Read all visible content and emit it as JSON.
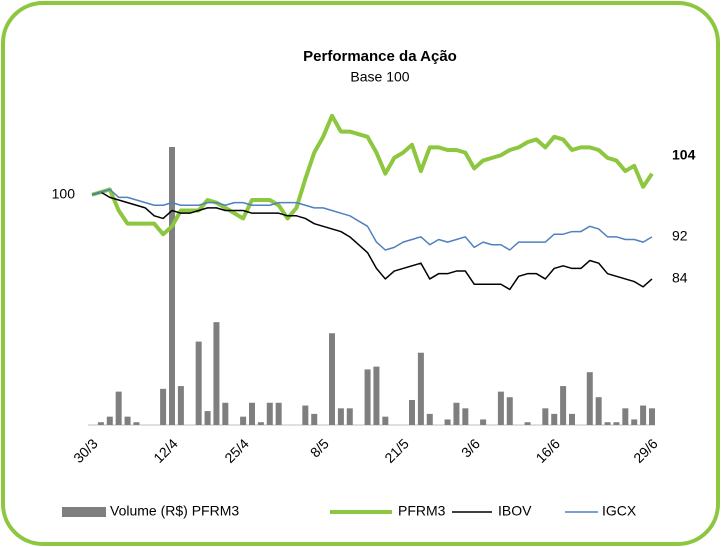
{
  "chart_data": {
    "type": "line",
    "title": "Performance da Ação",
    "subtitle": "Base 100",
    "categories": [
      "30/3",
      null,
      null,
      null,
      null,
      null,
      null,
      null,
      null,
      "12/4",
      null,
      null,
      null,
      null,
      null,
      null,
      null,
      "25/4",
      null,
      null,
      null,
      null,
      null,
      null,
      null,
      null,
      "8/5",
      null,
      null,
      null,
      null,
      null,
      null,
      null,
      null,
      "21/5",
      null,
      null,
      null,
      null,
      null,
      null,
      null,
      "3/6",
      null,
      null,
      null,
      null,
      null,
      null,
      null,
      null,
      "16/6",
      null,
      null,
      null,
      null,
      null,
      null,
      null,
      null,
      null,
      null,
      "29/6"
    ],
    "ylim": [
      80,
      118
    ],
    "yticks": [
      100
    ],
    "y2lim": [
      0,
      100
    ],
    "series": [
      {
        "name": "Volume (R$) PFRM3",
        "type": "bar",
        "axis": "y2",
        "color": "#7f7f7f",
        "values": [
          0,
          1,
          3,
          12,
          3,
          1,
          0,
          0,
          13,
          100,
          14,
          0,
          30,
          5,
          37,
          8,
          0,
          3,
          8,
          1,
          8,
          8,
          0,
          0,
          7,
          4,
          0,
          33,
          6,
          6,
          0,
          20,
          21,
          3,
          0,
          0,
          9,
          26,
          4,
          0,
          2,
          8,
          6,
          0,
          2,
          0,
          12,
          10,
          0,
          1,
          0,
          6,
          4,
          14,
          4,
          0,
          19,
          10,
          1,
          1,
          6,
          2,
          7,
          6
        ]
      },
      {
        "name": "PFRM3",
        "type": "line",
        "color": "#8dc63f",
        "values": [
          100,
          100.5,
          101,
          97,
          94.5,
          94.5,
          94.5,
          94.5,
          92.5,
          94,
          97,
          97,
          97,
          99,
          98.5,
          97.5,
          96.5,
          95.5,
          99,
          99,
          99,
          98,
          95.5,
          97.5,
          103,
          108,
          111,
          115,
          112,
          112,
          111.5,
          111,
          108,
          104,
          107,
          108,
          109.5,
          104.5,
          109,
          109,
          108.5,
          108.5,
          108,
          105,
          106.5,
          107,
          107.5,
          108.5,
          109,
          110,
          110.5,
          109,
          111,
          110.5,
          108.5,
          109,
          109,
          108.5,
          107,
          106.5,
          104.5,
          105.5,
          101.5,
          104
        ]
      },
      {
        "name": "IBOV",
        "type": "line",
        "color": "#000000",
        "values": [
          100,
          100.5,
          99.5,
          99,
          98.5,
          98,
          97.5,
          96,
          95.5,
          97,
          96.5,
          96.5,
          97,
          97.5,
          97.5,
          97,
          97,
          97,
          96.5,
          96.5,
          96.5,
          96.5,
          96,
          96,
          95.5,
          94.5,
          94,
          93.5,
          93,
          92,
          90.5,
          89,
          86,
          84,
          85.5,
          86,
          86.5,
          87,
          84,
          85,
          85,
          85.5,
          85.5,
          83,
          83,
          83,
          83,
          82,
          84.5,
          85,
          85,
          84,
          86,
          86.5,
          86,
          86,
          87.5,
          87,
          85,
          84.5,
          84,
          83.5,
          82.5,
          84
        ]
      },
      {
        "name": "IGCX",
        "type": "line",
        "color": "#4f81bd",
        "values": [
          100,
          100.5,
          101,
          99.5,
          99.5,
          99,
          98.5,
          98,
          98,
          98.5,
          98,
          98,
          98,
          98.5,
          98.5,
          98,
          98.5,
          98.5,
          98,
          98,
          98,
          98.5,
          98.5,
          98.5,
          98,
          97.5,
          97.5,
          97,
          96.5,
          96,
          95,
          94,
          91,
          89.5,
          90,
          91,
          91.5,
          92,
          90.5,
          91.5,
          91,
          91.5,
          92,
          90,
          91,
          90.5,
          90.5,
          89.5,
          91,
          91,
          91,
          91,
          92.5,
          92.5,
          93,
          93,
          94,
          93.5,
          92,
          92,
          91.5,
          91.5,
          91,
          92
        ]
      }
    ]
  }
}
